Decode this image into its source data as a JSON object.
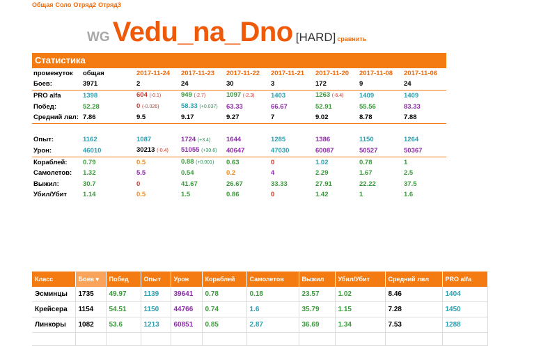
{
  "nav": [
    "Общая",
    "Соло",
    "Отряд2",
    "Отряд3"
  ],
  "header": {
    "wg": "WG",
    "nickname": "Vedu_na_Dno",
    "mode": "[HARD]",
    "compare": "сравнить"
  },
  "colors": {
    "accent": "#f47a12",
    "orange": "#ee6a0b",
    "blue": "#2aa0b0",
    "green": "#3c9a3c",
    "purple": "#8e2ca8",
    "red": "#c0392b"
  },
  "stats": {
    "title": "Статистика",
    "period_label": "промежуток",
    "periods": [
      "общая",
      "2017-11-24",
      "2017-11-23",
      "2017-11-22",
      "2017-11-21",
      "2017-11-20",
      "2017-11-08",
      "2017-11-06"
    ],
    "rows": [
      {
        "label": "Боев:",
        "sep": false,
        "cells": [
          {
            "v": "3971",
            "c": "#000"
          },
          {
            "v": "2",
            "c": "#000"
          },
          {
            "v": "24",
            "c": "#000"
          },
          {
            "v": "30",
            "c": "#000"
          },
          {
            "v": "3",
            "c": "#000"
          },
          {
            "v": "172",
            "c": "#000"
          },
          {
            "v": "9",
            "c": "#000"
          },
          {
            "v": "24",
            "c": "#000"
          }
        ]
      },
      {
        "label": "PRO alfa",
        "sep": true,
        "cells": [
          {
            "v": "1398",
            "c": "#2aa0b0"
          },
          {
            "v": "604",
            "c": "#c0392b",
            "d": "(-0.1)",
            "dc": "dneg"
          },
          {
            "v": "949",
            "c": "#3c9a3c",
            "d": "(-2.7)",
            "dc": "dneg"
          },
          {
            "v": "1097",
            "c": "#3c9a3c",
            "d": "(-2.3)",
            "dc": "dneg"
          },
          {
            "v": "1403",
            "c": "#2aa0b0"
          },
          {
            "v": "1263",
            "c": "#3c9a3c",
            "d": "(-6.4)",
            "dc": "dneg"
          },
          {
            "v": "1409",
            "c": "#2aa0b0"
          },
          {
            "v": "1409",
            "c": "#2aa0b0"
          }
        ]
      },
      {
        "label": "Побед:",
        "sep": false,
        "cells": [
          {
            "v": "52.28",
            "c": "#3c9a3c"
          },
          {
            "v": "0",
            "c": "#c0392b",
            "d": "(-0.026)",
            "dc": "dneg"
          },
          {
            "v": "58.33",
            "c": "#2aa0b0",
            "d": "(+0.037)",
            "dc": "dpos"
          },
          {
            "v": "63.33",
            "c": "#8e2ca8"
          },
          {
            "v": "66.67",
            "c": "#8e2ca8"
          },
          {
            "v": "52.91",
            "c": "#3c9a3c"
          },
          {
            "v": "55.56",
            "c": "#3c9a3c"
          },
          {
            "v": "83.33",
            "c": "#8e2ca8"
          }
        ]
      },
      {
        "label": "Средний лвл:",
        "sep": false,
        "cells": [
          {
            "v": "7.86",
            "c": "#000"
          },
          {
            "v": "9.5",
            "c": "#000"
          },
          {
            "v": "9.17",
            "c": "#000"
          },
          {
            "v": "9.27",
            "c": "#000"
          },
          {
            "v": "7",
            "c": "#000"
          },
          {
            "v": "9.02",
            "c": "#000"
          },
          {
            "v": "8.78",
            "c": "#000"
          },
          {
            "v": "7.88",
            "c": "#000"
          }
        ]
      },
      {
        "label": "",
        "sep": true,
        "cells": []
      },
      {
        "label": "Опыт:",
        "sep": false,
        "cells": [
          {
            "v": "1162",
            "c": "#2aa0b0"
          },
          {
            "v": "1087",
            "c": "#2aa0b0"
          },
          {
            "v": "1724",
            "c": "#8e2ca8",
            "d": "(+3.4)",
            "dc": "dpos"
          },
          {
            "v": "1644",
            "c": "#8e2ca8"
          },
          {
            "v": "1285",
            "c": "#2aa0b0"
          },
          {
            "v": "1386",
            "c": "#8e2ca8"
          },
          {
            "v": "1150",
            "c": "#2aa0b0"
          },
          {
            "v": "1264",
            "c": "#2aa0b0"
          }
        ]
      },
      {
        "label": "Урон:",
        "sep": false,
        "cells": [
          {
            "v": "46010",
            "c": "#2aa0b0"
          },
          {
            "v": "30213",
            "c": "#000",
            "d": "(-0.4)",
            "dc": "dneg"
          },
          {
            "v": "51055",
            "c": "#8e2ca8",
            "d": "(+30.6)",
            "dc": "dpos"
          },
          {
            "v": "40647",
            "c": "#8e2ca8"
          },
          {
            "v": "47030",
            "c": "#2aa0b0"
          },
          {
            "v": "60087",
            "c": "#8e2ca8"
          },
          {
            "v": "50527",
            "c": "#8e2ca8"
          },
          {
            "v": "50367",
            "c": "#8e2ca8"
          }
        ]
      },
      {
        "label": "Кораблей:",
        "sep": true,
        "cells": [
          {
            "v": "0.79",
            "c": "#3c9a3c"
          },
          {
            "v": "0.5",
            "c": "#ee8a1a"
          },
          {
            "v": "0.88",
            "c": "#3c9a3c",
            "d": "(+0.001)",
            "dc": "dpos"
          },
          {
            "v": "0.63",
            "c": "#3c9a3c"
          },
          {
            "v": "0",
            "c": "#c0392b"
          },
          {
            "v": "1.02",
            "c": "#2aa0b0"
          },
          {
            "v": "0.78",
            "c": "#3c9a3c"
          },
          {
            "v": "1",
            "c": "#3c9a3c"
          }
        ]
      },
      {
        "label": "Самолетов:",
        "sep": false,
        "cells": [
          {
            "v": "1.32",
            "c": "#3c9a3c"
          },
          {
            "v": "5.5",
            "c": "#8e2ca8"
          },
          {
            "v": "0.54",
            "c": "#3c9a3c"
          },
          {
            "v": "0.2",
            "c": "#ee8a1a"
          },
          {
            "v": "4",
            "c": "#8e2ca8"
          },
          {
            "v": "2.29",
            "c": "#3c9a3c"
          },
          {
            "v": "1.67",
            "c": "#3c9a3c"
          },
          {
            "v": "2.5",
            "c": "#3c9a3c"
          }
        ]
      },
      {
        "label": "Выжил:",
        "sep": false,
        "cells": [
          {
            "v": "30.7",
            "c": "#3c9a3c"
          },
          {
            "v": "0",
            "c": "#c0392b"
          },
          {
            "v": "41.67",
            "c": "#3c9a3c"
          },
          {
            "v": "26.67",
            "c": "#3c9a3c"
          },
          {
            "v": "33.33",
            "c": "#3c9a3c"
          },
          {
            "v": "27.91",
            "c": "#3c9a3c"
          },
          {
            "v": "22.22",
            "c": "#3c9a3c"
          },
          {
            "v": "37.5",
            "c": "#3c9a3c"
          }
        ]
      },
      {
        "label": "Убил/Убит",
        "sep": false,
        "cells": [
          {
            "v": "1.14",
            "c": "#3c9a3c"
          },
          {
            "v": "0.5",
            "c": "#ee8a1a"
          },
          {
            "v": "1.5",
            "c": "#3c9a3c"
          },
          {
            "v": "0.86",
            "c": "#3c9a3c"
          },
          {
            "v": "0",
            "c": "#c0392b"
          },
          {
            "v": "1.42",
            "c": "#3c9a3c"
          },
          {
            "v": "1",
            "c": "#3c9a3c"
          },
          {
            "v": "1.6",
            "c": "#3c9a3c"
          }
        ]
      }
    ]
  },
  "classes": {
    "headers": [
      "Класс",
      "Боев",
      "Побед",
      "Опыт",
      "Урон",
      "Кораблей",
      "Самолетов",
      "Выжил",
      "Убил/Убит",
      "Средний лвл",
      "PRO alfa"
    ],
    "sort_indicator": "▾",
    "rows": [
      {
        "cells": [
          {
            "v": "Эсминцы",
            "c": "#000"
          },
          {
            "v": "1735",
            "c": "#000"
          },
          {
            "v": "49.97",
            "c": "#3c9a3c"
          },
          {
            "v": "1139",
            "c": "#2aa0b0"
          },
          {
            "v": "39641",
            "c": "#8e2ca8"
          },
          {
            "v": "0.78",
            "c": "#3c9a3c"
          },
          {
            "v": "0.18",
            "c": "#3c9a3c"
          },
          {
            "v": "23.57",
            "c": "#3c9a3c"
          },
          {
            "v": "1.02",
            "c": "#3c9a3c"
          },
          {
            "v": "8.46",
            "c": "#000"
          },
          {
            "v": "1404",
            "c": "#2aa0b0"
          }
        ]
      },
      {
        "cells": [
          {
            "v": "Крейсера",
            "c": "#000"
          },
          {
            "v": "1154",
            "c": "#000"
          },
          {
            "v": "54.51",
            "c": "#3c9a3c"
          },
          {
            "v": "1150",
            "c": "#2aa0b0"
          },
          {
            "v": "44766",
            "c": "#8e2ca8"
          },
          {
            "v": "0.74",
            "c": "#3c9a3c"
          },
          {
            "v": "1.6",
            "c": "#2aa0b0"
          },
          {
            "v": "35.79",
            "c": "#3c9a3c"
          },
          {
            "v": "1.15",
            "c": "#3c9a3c"
          },
          {
            "v": "7.28",
            "c": "#000"
          },
          {
            "v": "1450",
            "c": "#2aa0b0"
          }
        ]
      },
      {
        "cells": [
          {
            "v": "Линкоры",
            "c": "#000"
          },
          {
            "v": "1082",
            "c": "#000"
          },
          {
            "v": "53.6",
            "c": "#3c9a3c"
          },
          {
            "v": "1213",
            "c": "#2aa0b0"
          },
          {
            "v": "60851",
            "c": "#8e2ca8"
          },
          {
            "v": "0.85",
            "c": "#3c9a3c"
          },
          {
            "v": "2.87",
            "c": "#2aa0b0"
          },
          {
            "v": "36.69",
            "c": "#3c9a3c"
          },
          {
            "v": "1.34",
            "c": "#3c9a3c"
          },
          {
            "v": "7.53",
            "c": "#000"
          },
          {
            "v": "1288",
            "c": "#2aa0b0"
          }
        ]
      },
      {
        "cells": [
          {
            "v": "",
            "c": "#000"
          },
          {
            "v": "",
            "c": "#000"
          },
          {
            "v": "",
            "c": "#000"
          },
          {
            "v": "",
            "c": "#000"
          },
          {
            "v": "",
            "c": "#000"
          },
          {
            "v": "",
            "c": "#000"
          },
          {
            "v": "",
            "c": "#000"
          },
          {
            "v": "",
            "c": "#000"
          },
          {
            "v": "",
            "c": "#000"
          },
          {
            "v": "",
            "c": "#000"
          },
          {
            "v": "",
            "c": "#000"
          }
        ]
      }
    ]
  }
}
